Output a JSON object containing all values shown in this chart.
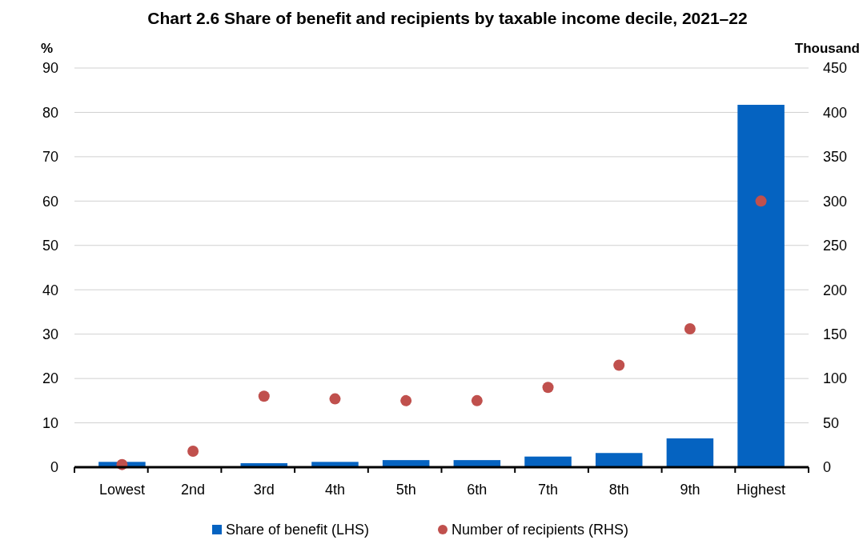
{
  "chart_data": {
    "type": "bar",
    "title": "Chart 2.6 Share of benefit and recipients by taxable income decile, 2021–22",
    "ylabel": "%",
    "y2label": "Thousand",
    "categories": [
      "Lowest",
      "2nd",
      "3rd",
      "4th",
      "5th",
      "6th",
      "7th",
      "8th",
      "9th",
      "Highest"
    ],
    "series": [
      {
        "name": "Share of benefit (LHS)",
        "color": "#0563c1",
        "values": [
          1.2,
          0,
          0.9,
          1.2,
          1.6,
          1.6,
          2.4,
          3.2,
          6.5,
          81.7
        ]
      },
      {
        "name": "Number of recipients (RHS)",
        "type": "scatter",
        "axis": "y2",
        "color": "#c0504d",
        "values": [
          3,
          18,
          80,
          77,
          75,
          75,
          90,
          115,
          156,
          300
        ]
      }
    ],
    "ylim": [
      0,
      90
    ],
    "yticks": [
      0,
      10,
      20,
      30,
      40,
      50,
      60,
      70,
      80,
      90
    ],
    "y2lim": [
      0,
      450
    ],
    "y2ticks": [
      0,
      50,
      100,
      150,
      200,
      250,
      300,
      350,
      400,
      450
    ],
    "grid": "y",
    "legend": "bottom",
    "marker": "circle"
  }
}
